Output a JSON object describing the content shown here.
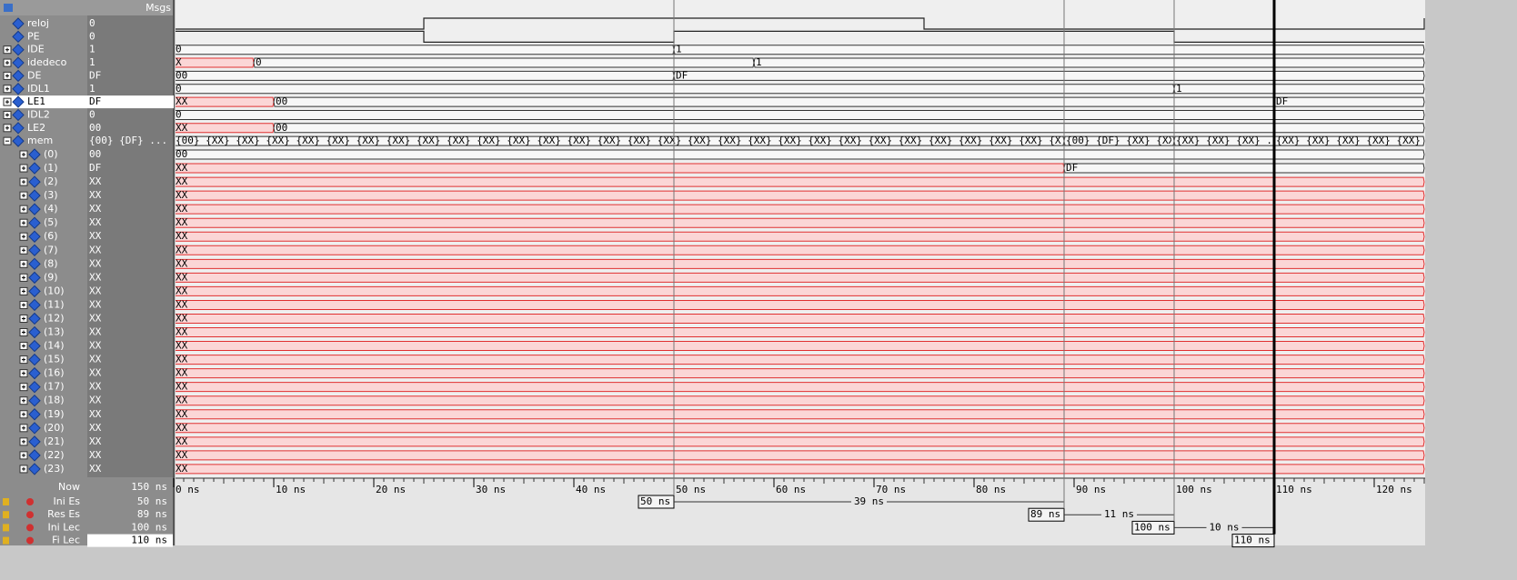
{
  "toolbar": {
    "msgs": "Msgs"
  },
  "signals": [
    {
      "name": "reloj",
      "value": "0",
      "kind": "bit",
      "wave": [
        {
          "t": 0,
          "v": 0
        },
        {
          "t": 25,
          "v": 1
        },
        {
          "t": 75,
          "v": 0
        },
        {
          "t": 125,
          "v": 1
        }
      ]
    },
    {
      "name": "PE",
      "value": "0",
      "kind": "bit",
      "wave": [
        {
          "t": 0,
          "v": 1
        },
        {
          "t": 25,
          "v": 0
        },
        {
          "t": 50,
          "v": 1
        },
        {
          "t": 100,
          "v": 0
        }
      ]
    },
    {
      "name": "IDE",
      "value": "1",
      "kind": "bus",
      "wave": [
        {
          "t": 0,
          "text": "0"
        },
        {
          "t": 50,
          "text": "1"
        }
      ]
    },
    {
      "name": "idedeco",
      "value": "1",
      "kind": "bus",
      "wave": [
        {
          "t": 0,
          "text": "X"
        },
        {
          "t": 8,
          "text": "0"
        },
        {
          "t": 58,
          "text": "1"
        }
      ]
    },
    {
      "name": "DE",
      "value": "DF",
      "kind": "bus",
      "wave": [
        {
          "t": 0,
          "text": "00"
        },
        {
          "t": 50,
          "text": "DF"
        }
      ]
    },
    {
      "name": "IDL1",
      "value": "1",
      "kind": "bus",
      "wave": [
        {
          "t": 0,
          "text": "0"
        },
        {
          "t": 100,
          "text": "1"
        }
      ]
    },
    {
      "name": "LE1",
      "value": "DF",
      "kind": "bus",
      "selected": true,
      "wave": [
        {
          "t": 0,
          "text": "XX"
        },
        {
          "t": 10,
          "text": "00"
        },
        {
          "t": 110,
          "text": "DF"
        }
      ]
    },
    {
      "name": "IDL2",
      "value": "0",
      "kind": "bus",
      "wave": [
        {
          "t": 0,
          "text": "0"
        }
      ]
    },
    {
      "name": "LE2",
      "value": "00",
      "kind": "bus",
      "wave": [
        {
          "t": 0,
          "text": "XX"
        },
        {
          "t": 10,
          "text": "00"
        }
      ]
    },
    {
      "name": "mem",
      "value": "{00} {DF} ...",
      "kind": "bus",
      "expanded": true,
      "wave": [
        {
          "t": 0,
          "text": "{00} {XX} {XX} {XX} {XX} {XX} {XX} {XX} {XX} {XX} {XX} {XX} {XX} {XX} {XX} {XX} {XX} {XX} {XX} {XX} {XX} {XX} {XX} {XX} {XX} {XX} {XX} {XX} {XX} {XX} {XX} {XX} {XX} {XX} {XX} {XX} {XX} {XX} {XX}..."
        },
        {
          "t": 89,
          "text": "{00} {DF} {XX} {XX} ..."
        },
        {
          "t": 100,
          "text": "{XX} {XX} {XX} ..."
        },
        {
          "t": 110,
          "text": "{XX} {XX} {XX} {XX} {XX} ..."
        }
      ]
    }
  ],
  "mem": [
    {
      "name": "(0)",
      "value": "00",
      "wave": [
        {
          "t": 0,
          "text": "00"
        }
      ]
    },
    {
      "name": "(1)",
      "value": "DF",
      "wave": [
        {
          "t": 0,
          "text": "XX"
        },
        {
          "t": 89,
          "text": "DF"
        }
      ]
    },
    {
      "name": "(2)",
      "value": "XX",
      "wave": [
        {
          "t": 0,
          "text": "XX"
        }
      ]
    },
    {
      "name": "(3)",
      "value": "XX",
      "wave": [
        {
          "t": 0,
          "text": "XX"
        }
      ]
    },
    {
      "name": "(4)",
      "value": "XX",
      "wave": [
        {
          "t": 0,
          "text": "XX"
        }
      ]
    },
    {
      "name": "(5)",
      "value": "XX",
      "wave": [
        {
          "t": 0,
          "text": "XX"
        }
      ]
    },
    {
      "name": "(6)",
      "value": "XX",
      "wave": [
        {
          "t": 0,
          "text": "XX"
        }
      ]
    },
    {
      "name": "(7)",
      "value": "XX",
      "wave": [
        {
          "t": 0,
          "text": "XX"
        }
      ]
    },
    {
      "name": "(8)",
      "value": "XX",
      "wave": [
        {
          "t": 0,
          "text": "XX"
        }
      ]
    },
    {
      "name": "(9)",
      "value": "XX",
      "wave": [
        {
          "t": 0,
          "text": "XX"
        }
      ]
    },
    {
      "name": "(10)",
      "value": "XX",
      "wave": [
        {
          "t": 0,
          "text": "XX"
        }
      ]
    },
    {
      "name": "(11)",
      "value": "XX",
      "wave": [
        {
          "t": 0,
          "text": "XX"
        }
      ]
    },
    {
      "name": "(12)",
      "value": "XX",
      "wave": [
        {
          "t": 0,
          "text": "XX"
        }
      ]
    },
    {
      "name": "(13)",
      "value": "XX",
      "wave": [
        {
          "t": 0,
          "text": "XX"
        }
      ]
    },
    {
      "name": "(14)",
      "value": "XX",
      "wave": [
        {
          "t": 0,
          "text": "XX"
        }
      ]
    },
    {
      "name": "(15)",
      "value": "XX",
      "wave": [
        {
          "t": 0,
          "text": "XX"
        }
      ]
    },
    {
      "name": "(16)",
      "value": "XX",
      "wave": [
        {
          "t": 0,
          "text": "XX"
        }
      ]
    },
    {
      "name": "(17)",
      "value": "XX",
      "wave": [
        {
          "t": 0,
          "text": "XX"
        }
      ]
    },
    {
      "name": "(18)",
      "value": "XX",
      "wave": [
        {
          "t": 0,
          "text": "XX"
        }
      ]
    },
    {
      "name": "(19)",
      "value": "XX",
      "wave": [
        {
          "t": 0,
          "text": "XX"
        }
      ]
    },
    {
      "name": "(20)",
      "value": "XX",
      "wave": [
        {
          "t": 0,
          "text": "XX"
        }
      ]
    },
    {
      "name": "(21)",
      "value": "XX",
      "wave": [
        {
          "t": 0,
          "text": "XX"
        }
      ]
    },
    {
      "name": "(22)",
      "value": "XX",
      "wave": [
        {
          "t": 0,
          "text": "XX"
        }
      ]
    },
    {
      "name": "(23)",
      "value": "XX",
      "wave": [
        {
          "t": 0,
          "text": "XX"
        }
      ]
    }
  ],
  "now": {
    "label": "Now",
    "value": "150 ns"
  },
  "timeline": [
    {
      "value": 0,
      "label": "0 ns"
    },
    {
      "value": 10,
      "label": "10 ns"
    },
    {
      "value": 20,
      "label": "20 ns"
    },
    {
      "value": 30,
      "label": "30 ns"
    },
    {
      "value": 40,
      "label": "40 ns"
    },
    {
      "value": 50,
      "label": "50 ns"
    },
    {
      "value": 60,
      "label": "60 ns"
    },
    {
      "value": 70,
      "label": "70 ns"
    },
    {
      "value": 80,
      "label": "80 ns"
    },
    {
      "value": 90,
      "label": "90 ns"
    },
    {
      "value": 100,
      "label": "100 ns"
    },
    {
      "value": 110,
      "label": "110 ns"
    },
    {
      "value": 120,
      "label": "120 ns"
    }
  ],
  "cursors": [
    {
      "name": "Ini Es",
      "time": {
        "value": 50,
        "label": "50 ns"
      },
      "delta": "39 ns"
    },
    {
      "name": "Res Es",
      "time": {
        "value": 89,
        "label": "89 ns"
      },
      "delta": "11 ns"
    },
    {
      "name": "Ini Lec",
      "time": {
        "value": 100,
        "label": "100 ns"
      },
      "delta": "10 ns"
    },
    {
      "name": "Fi Lec",
      "time": {
        "value": 110,
        "label": "110 ns"
      },
      "selected": true
    }
  ]
}
